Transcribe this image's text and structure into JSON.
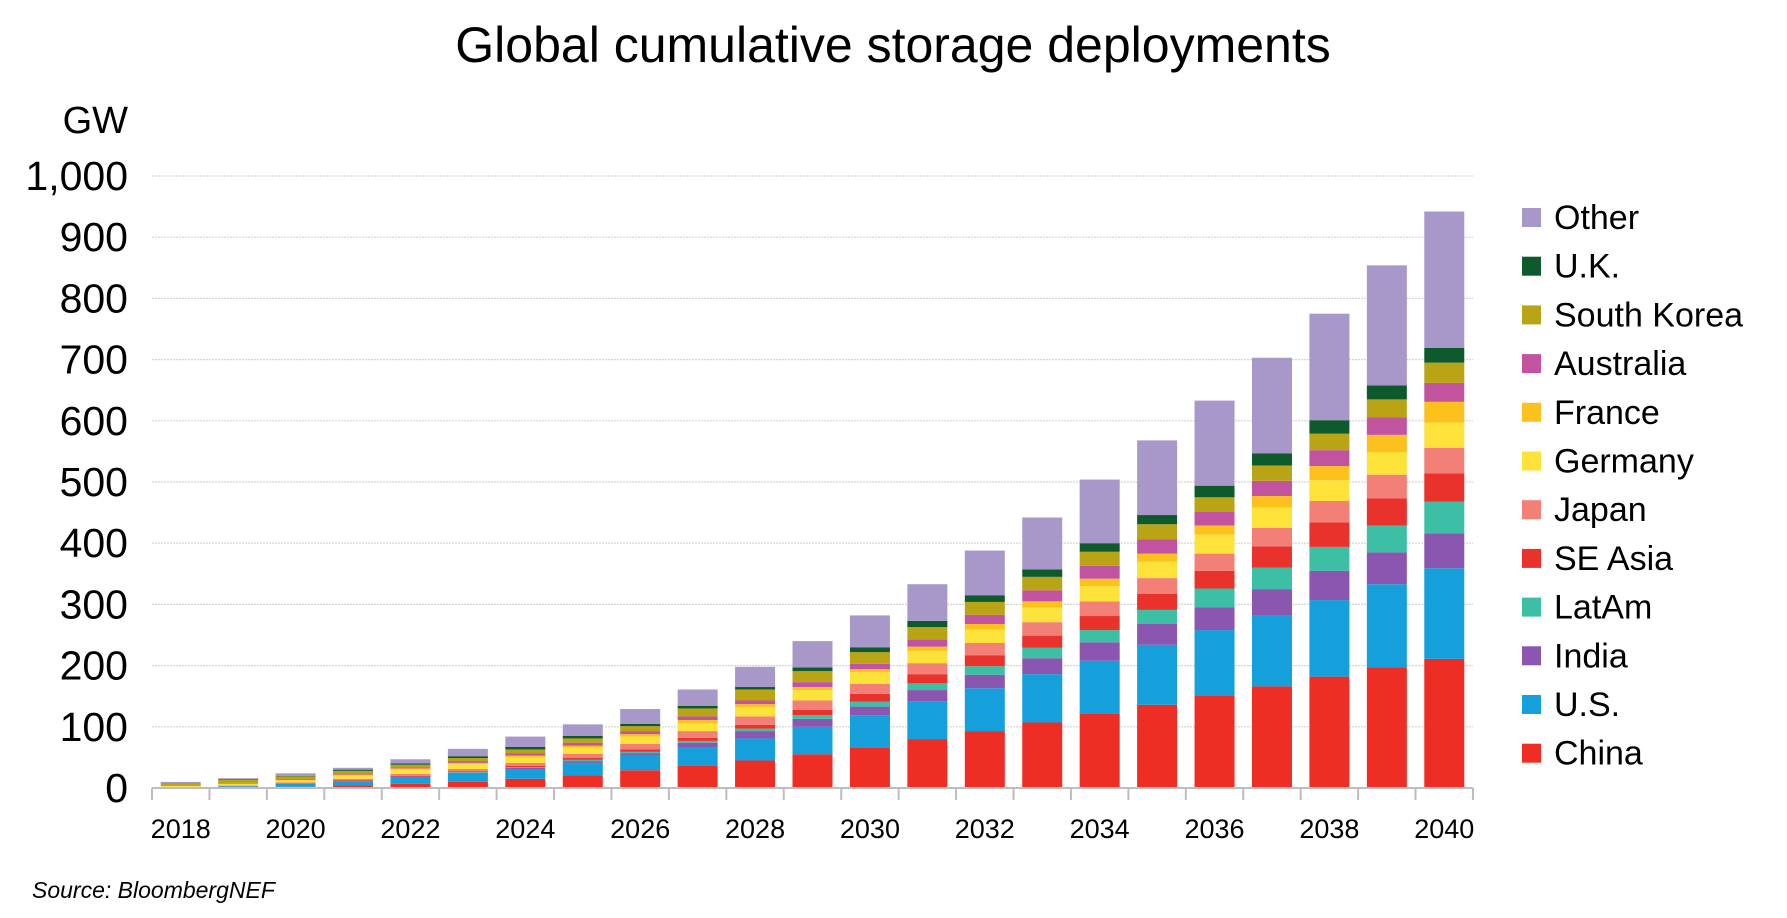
{
  "chart_data": {
    "type": "bar",
    "stacked": true,
    "title": "Global cumulative storage deployments",
    "ylabel": "GW",
    "xlabel": "",
    "ylim": [
      0,
      1000
    ],
    "yticks": [
      0,
      100,
      200,
      300,
      400,
      500,
      600,
      700,
      800,
      900,
      1000
    ],
    "ytick_labels": [
      "0",
      "100",
      "200",
      "300",
      "400",
      "500",
      "600",
      "700",
      "800",
      "900",
      "1,000"
    ],
    "grid": true,
    "legend_position": "right",
    "categories": [
      "2018",
      "2019",
      "2020",
      "2021",
      "2022",
      "2023",
      "2024",
      "2025",
      "2026",
      "2027",
      "2028",
      "2029",
      "2030",
      "2031",
      "2032",
      "2033",
      "2034",
      "2035",
      "2036",
      "2037",
      "2038",
      "2039",
      "2040"
    ],
    "xtick_labels": [
      "2018",
      "2020",
      "2022",
      "2024",
      "2026",
      "2028",
      "2030",
      "2032",
      "2034",
      "2036",
      "2038",
      "2040"
    ],
    "series": [
      {
        "name": "China",
        "color": "#ee2e24",
        "values": [
          0.5,
          1,
          2,
          4,
          7,
          10,
          15,
          21,
          29,
          36,
          45,
          55,
          66,
          80,
          93,
          107,
          121,
          136,
          151,
          166,
          182,
          197,
          211
        ]
      },
      {
        "name": "U.S.",
        "color": "#159fdb",
        "values": [
          1,
          2,
          5,
          7,
          11,
          13,
          16,
          20,
          24,
          30,
          36,
          45,
          53,
          62,
          70,
          79,
          87,
          98,
          107,
          116,
          125,
          136,
          148
        ]
      },
      {
        "name": "India",
        "color": "#8b56b0",
        "values": [
          0,
          0,
          0.5,
          1,
          1,
          2,
          2,
          3,
          4,
          8,
          12,
          13,
          14,
          18,
          22,
          26,
          30,
          34,
          37,
          43,
          48,
          52,
          57
        ]
      },
      {
        "name": "LatAm",
        "color": "#3dbfa5",
        "values": [
          0,
          0,
          0,
          0,
          0,
          1,
          1,
          2,
          2,
          3,
          4,
          6,
          8,
          11,
          14,
          17,
          20,
          23,
          31,
          35,
          39,
          44,
          52
        ]
      },
      {
        "name": "SE Asia",
        "color": "#e8322b",
        "values": [
          0,
          0,
          0.5,
          1,
          1,
          1,
          2,
          3,
          4,
          5,
          6,
          9,
          13,
          15,
          18,
          20,
          23,
          26,
          29,
          35,
          40,
          44,
          46
        ]
      },
      {
        "name": "Japan",
        "color": "#f28076",
        "values": [
          0.5,
          1,
          1,
          2,
          3,
          4,
          5,
          7,
          9,
          11,
          14,
          15,
          16,
          18,
          20,
          22,
          24,
          26,
          28,
          30,
          35,
          39,
          42
        ]
      },
      {
        "name": "Germany",
        "color": "#fde23a",
        "values": [
          1,
          2,
          3,
          5,
          7,
          8,
          9,
          10,
          12,
          13,
          15,
          17,
          19,
          20,
          22,
          24,
          25,
          27,
          31,
          33,
          34,
          37,
          41
        ]
      },
      {
        "name": "France",
        "color": "#fcc11c",
        "values": [
          0.5,
          1,
          1,
          2,
          2,
          2,
          3,
          3,
          4,
          5,
          5,
          5,
          5,
          7,
          9,
          10,
          12,
          13,
          15,
          19,
          23,
          28,
          34
        ]
      },
      {
        "name": "Australia",
        "color": "#c2549f",
        "values": [
          0.5,
          1,
          1,
          2,
          2,
          3,
          4,
          5,
          5,
          6,
          6,
          8,
          9,
          12,
          15,
          18,
          21,
          23,
          22,
          25,
          26,
          29,
          31
        ]
      },
      {
        "name": "South Korea",
        "color": "#b8a414",
        "values": [
          4,
          5,
          5,
          4,
          4,
          5,
          6,
          7,
          8,
          13,
          18,
          18,
          19,
          20,
          21,
          22,
          23,
          25,
          24,
          25,
          27,
          29,
          33
        ]
      },
      {
        "name": "U.K.",
        "color": "#0e5a2d",
        "values": [
          0.5,
          1,
          1,
          2,
          2,
          3,
          4,
          4,
          4,
          4,
          4,
          6,
          8,
          10,
          11,
          12,
          14,
          15,
          19,
          20,
          22,
          23,
          24
        ]
      },
      {
        "name": "Other",
        "color": "#a897c9",
        "values": [
          1.5,
          2,
          4,
          3,
          7,
          12,
          17,
          19,
          24,
          27,
          33,
          43,
          52,
          60,
          73,
          85,
          104,
          122,
          139,
          156,
          174,
          196,
          223
        ]
      }
    ],
    "source": "Source: BloombergNEF"
  }
}
